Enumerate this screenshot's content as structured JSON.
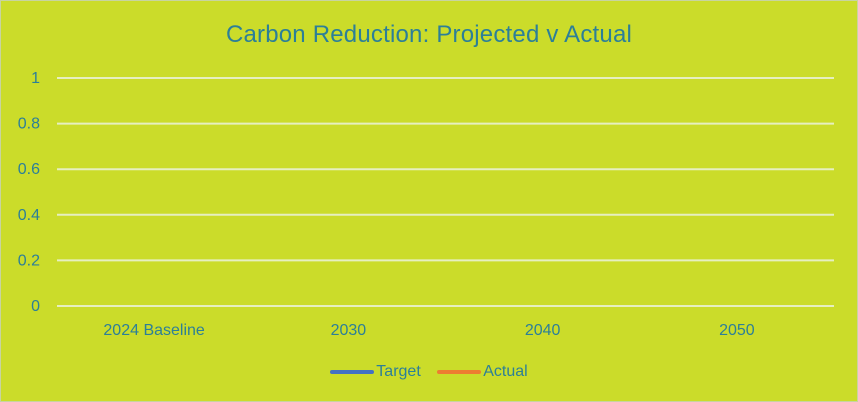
{
  "chart_data": {
    "type": "line",
    "title": "Carbon Reduction: Projected v Actual",
    "xlabel": "",
    "ylabel": "",
    "categories": [
      "2024 Baseline",
      "2030",
      "2040",
      "2050"
    ],
    "yticks": [
      "0",
      "0.2",
      "0.4",
      "0.6",
      "0.8",
      "1"
    ],
    "ylim": [
      0,
      1
    ],
    "grid": true,
    "legend_position": "bottom",
    "series": [
      {
        "name": "Target",
        "values": [
          null,
          null,
          null,
          null
        ],
        "color": "#4472c4"
      },
      {
        "name": "Actual",
        "values": [
          null,
          null,
          null,
          null
        ],
        "color": "#ed7d31"
      }
    ],
    "colors": {
      "background": "#cbdc2a",
      "gridline": "#e6efc0",
      "text": "#2c7f98"
    }
  }
}
